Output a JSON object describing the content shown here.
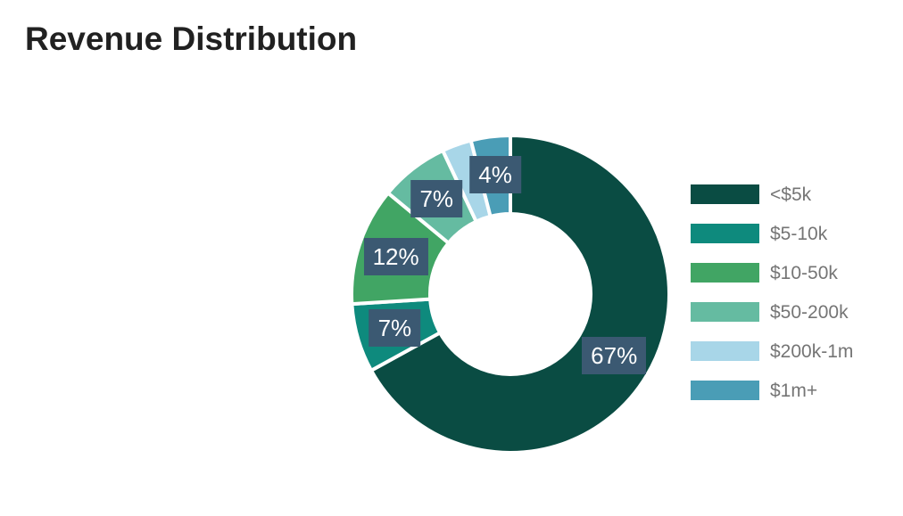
{
  "header": {
    "title": "Revenue Distribution"
  },
  "chart_data": {
    "type": "pie",
    "subtype": "donut",
    "title": "Revenue Distribution",
    "categories": [
      "<$5k",
      "$5-10k",
      "$10-50k",
      "$50-200k",
      "$200k-1m",
      "$1m+"
    ],
    "values": [
      67,
      7,
      12,
      7,
      3,
      4
    ],
    "unit": "percent",
    "slice_labels": [
      "67%",
      "7%",
      "12%",
      "7%",
      "",
      "4%"
    ],
    "colors": [
      "#0a4c43",
      "#0e8a7d",
      "#41a564",
      "#65bba1",
      "#a8d6e8",
      "#4a9db6"
    ],
    "slice_names": [
      "under-5k",
      "5-10k",
      "10-50k",
      "50-200k",
      "200k-1m",
      "1m-plus"
    ],
    "start_angle_deg": 0,
    "direction": "clockwise",
    "legend_position": "right",
    "label_box_color": "#3b5972",
    "label_text_color": "#ffffff",
    "legend_text_color": "#757575",
    "title_color": "#212121",
    "gap_color": "#ffffff"
  }
}
